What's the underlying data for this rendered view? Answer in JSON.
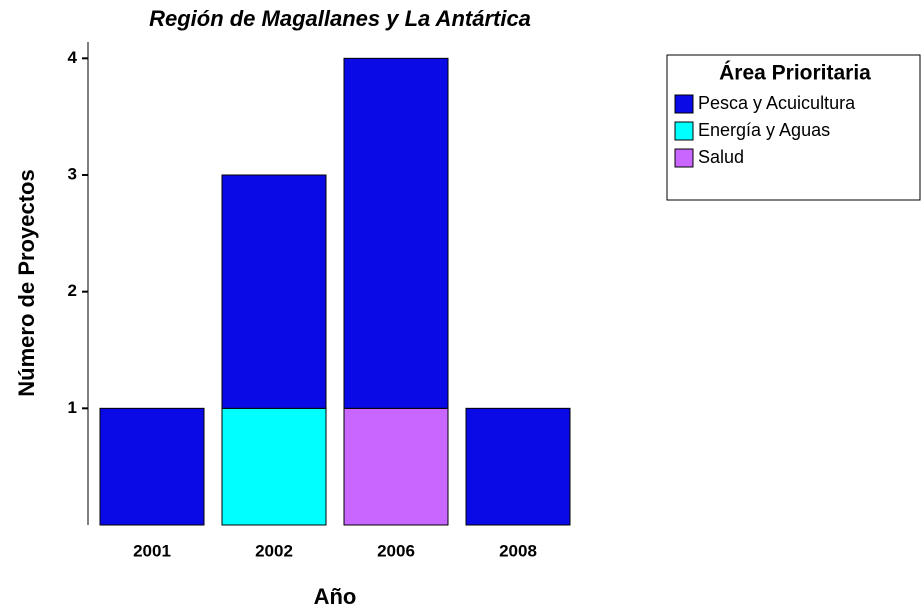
{
  "chart_data": {
    "type": "stacked_bar",
    "title": "Región de Magallanes y La Antártica",
    "x_label": "Año",
    "y_label": "Número de Proyectos",
    "categories": [
      "2001",
      "2002",
      "2006",
      "2008"
    ],
    "series": [
      {
        "name": "Pesca y Acuicultura",
        "color": "#0a0ae6",
        "values": [
          1,
          2,
          3,
          1
        ]
      },
      {
        "name": "Energía y Aguas",
        "color": "#00ffff",
        "values": [
          0,
          1,
          0,
          0
        ]
      },
      {
        "name": "Salud",
        "color": "#c966ff",
        "values": [
          0,
          0,
          1,
          0
        ]
      }
    ],
    "legend_title": "Área Prioritaria",
    "ylim": [
      0,
      4.14
    ],
    "yticks": [
      1,
      2,
      3,
      4
    ],
    "grid": false,
    "legend": "right"
  }
}
